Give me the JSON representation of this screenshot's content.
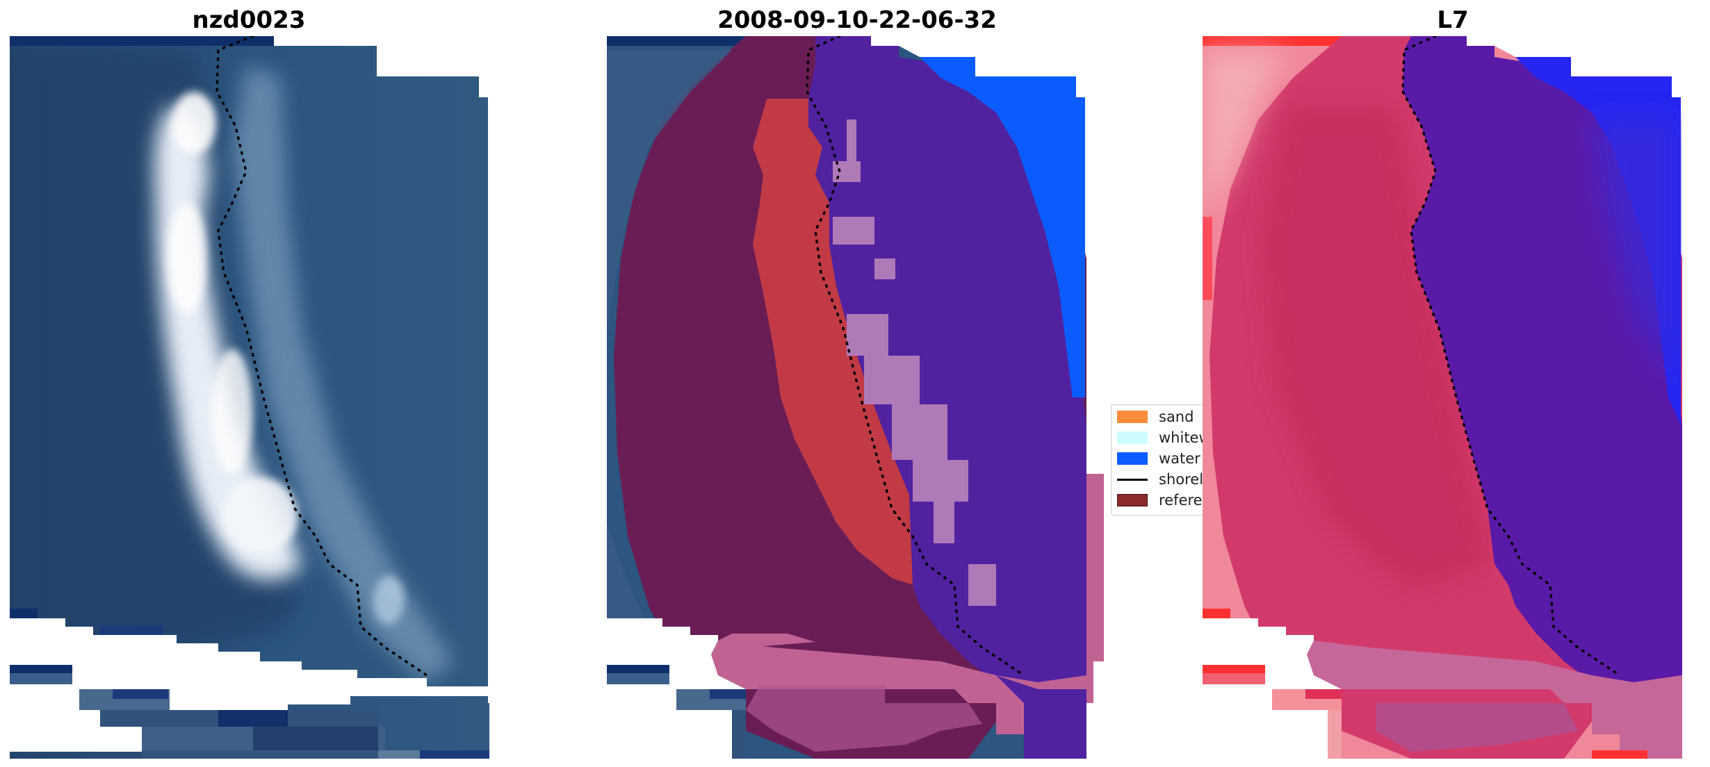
{
  "panels": [
    {
      "title": "nzd0023",
      "variant": "rgb"
    },
    {
      "title": "2008-09-10-22-06-32",
      "variant": "classified"
    },
    {
      "title": "L7",
      "variant": "index"
    }
  ],
  "legend": {
    "items": [
      {
        "label": "sand",
        "kind": "patch",
        "color": "#ff8c3a"
      },
      {
        "label": "whitewater",
        "kind": "patch",
        "color": "#ccfcfc"
      },
      {
        "label": "water",
        "kind": "patch",
        "color": "#0a5cff"
      },
      {
        "label": "shoreline",
        "kind": "line",
        "color": "#000000"
      },
      {
        "label": "reference",
        "kind": "patch",
        "color": "#8b2b2e"
      }
    ]
  },
  "colors": {
    "sea_deep": "#1e3f66",
    "sea": "#2c5580",
    "sea_dark_band": "#0d2b6b",
    "beach_white": "#dfe8f3",
    "beach_mid": "#9fb5cf",
    "class_reference": "#6a1d55",
    "class_sand_overlay": "#c13a45",
    "class_water": "#5022a0",
    "class_water_bright": "#0a5cff",
    "class_buffer_pink": "#c06393",
    "class_buffer_light": "#b07ab8",
    "index_land": "#d23a6b",
    "index_land_light": "#f08a9a",
    "index_sea": "#5a1aa8",
    "index_far_sea": "#2222ee",
    "index_edge_red": "#ff3030",
    "shoreline": "#000000"
  }
}
